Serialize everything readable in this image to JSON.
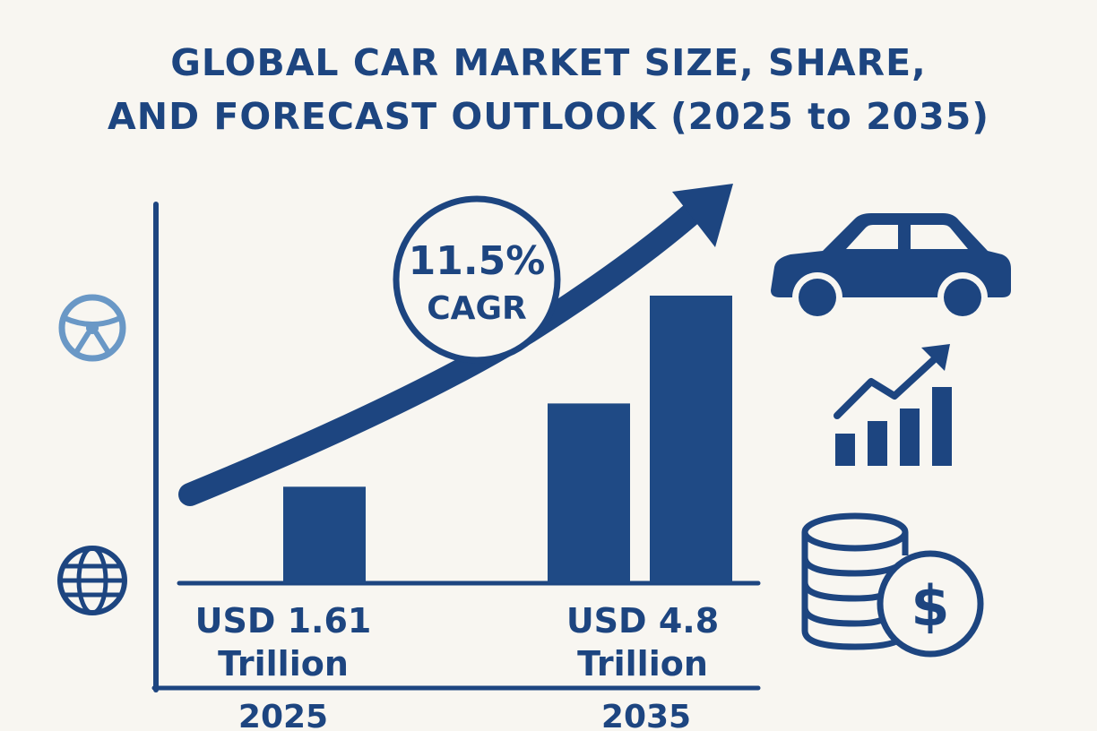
{
  "title": {
    "line1": "GLOBAL CAR MARKET SIZE, SHARE,",
    "line2": "AND FORECAST OUTLOOK (2025 to 2035)"
  },
  "colors": {
    "primary": "#1d4580",
    "bar": "#1f4a85",
    "light_icon": "#6a98c6",
    "background": "#f8f6f1"
  },
  "chart_data": {
    "type": "bar",
    "categories": [
      "2025",
      "2035"
    ],
    "series": [
      {
        "values": [
          1.61,
          4.8
        ]
      }
    ],
    "bar_labels": [
      {
        "line1": "USD 1.61",
        "line2": "Trillion"
      },
      {
        "line1": "USD 4.8",
        "line2": "Trillion"
      }
    ],
    "annotation": {
      "line1": "11.5%",
      "line2": "CAGR"
    },
    "ylim": [
      0,
      5.5
    ],
    "grid": false,
    "trend_arrow": true
  },
  "icons": {
    "steering": "steering-wheel-icon",
    "globe": "globe-icon",
    "car": "car-icon",
    "growth": "growth-chart-icon",
    "coins": "coins-dollar-icon",
    "dollar_sign": "$"
  }
}
